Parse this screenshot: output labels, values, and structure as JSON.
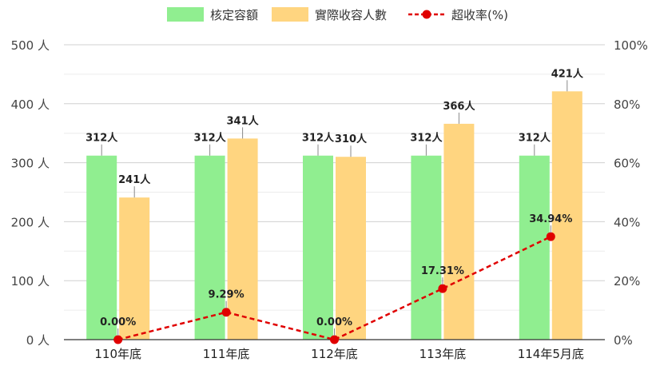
{
  "chart_data": {
    "type": "bar",
    "categories": [
      "110年底",
      "111年底",
      "112年底",
      "113年底",
      "114年5月底"
    ],
    "series": [
      {
        "name": "核定容額",
        "kind": "bar",
        "color": "#90EE90",
        "values": [
          312,
          312,
          312,
          312,
          312
        ],
        "labels": [
          "312人",
          "312人",
          "312人",
          "312人",
          "312人"
        ]
      },
      {
        "name": "實際收容人數",
        "kind": "bar",
        "color": "#FFD580",
        "values": [
          241,
          341,
          310,
          366,
          421
        ],
        "labels": [
          "241人",
          "341人",
          "310人",
          "366人",
          "421人"
        ]
      },
      {
        "name": "超收率(%)",
        "kind": "line",
        "axis": "right",
        "color": "#E00000",
        "values": [
          0.0,
          9.29,
          0.0,
          17.31,
          34.94
        ],
        "labels": [
          "0.00%",
          "9.29%",
          "0.00%",
          "17.31%",
          "34.94%"
        ]
      }
    ],
    "y_left": {
      "min": 0,
      "max": 500,
      "ticks": [
        "0 人",
        "100 人",
        "200 人",
        "300 人",
        "400 人",
        "500 人"
      ]
    },
    "y_right": {
      "min": 0,
      "max": 100,
      "ticks": [
        "0%",
        "20%",
        "40%",
        "60%",
        "80%",
        "100%"
      ]
    },
    "legend": "top-center",
    "grid": true
  }
}
